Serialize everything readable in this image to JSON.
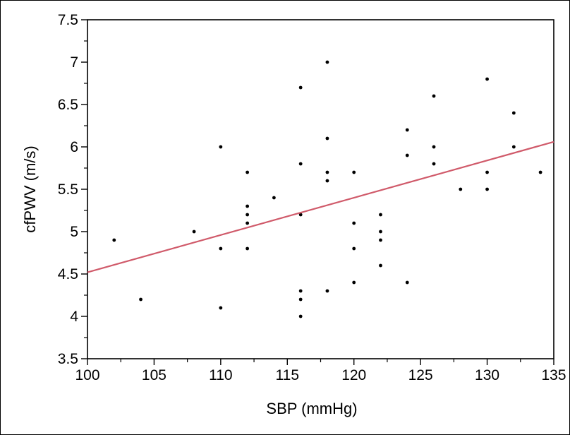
{
  "chart_data": {
    "type": "scatter",
    "xlabel": "SBP (mmHg)",
    "ylabel": "cfPWV (m/s)",
    "xlim": [
      100,
      135
    ],
    "ylim": [
      3.5,
      7.5
    ],
    "xticks": [
      100,
      105,
      110,
      115,
      120,
      125,
      130,
      135
    ],
    "yticks": [
      3.5,
      4,
      4.5,
      5,
      5.5,
      6,
      6.5,
      7,
      7.5
    ],
    "xtick_labels": [
      "100",
      "105",
      "110",
      "115",
      "120",
      "125",
      "130",
      "135"
    ],
    "ytick_labels": [
      "3.5",
      "4",
      "4.5",
      "5",
      "5.5",
      "6",
      "6.5",
      "7",
      "7.5"
    ],
    "grid": false,
    "points": [
      {
        "x": 102,
        "y": 4.9
      },
      {
        "x": 104,
        "y": 4.2
      },
      {
        "x": 108,
        "y": 5.0
      },
      {
        "x": 110,
        "y": 6.0
      },
      {
        "x": 110,
        "y": 4.8
      },
      {
        "x": 110,
        "y": 4.1
      },
      {
        "x": 112,
        "y": 5.7
      },
      {
        "x": 112,
        "y": 5.3
      },
      {
        "x": 112,
        "y": 5.2
      },
      {
        "x": 112,
        "y": 5.1
      },
      {
        "x": 112,
        "y": 4.8
      },
      {
        "x": 114,
        "y": 5.4
      },
      {
        "x": 116,
        "y": 6.7
      },
      {
        "x": 116,
        "y": 5.8
      },
      {
        "x": 116,
        "y": 5.2
      },
      {
        "x": 116,
        "y": 4.3
      },
      {
        "x": 116,
        "y": 4.2
      },
      {
        "x": 116,
        "y": 4.0
      },
      {
        "x": 118,
        "y": 7.0
      },
      {
        "x": 118,
        "y": 6.1
      },
      {
        "x": 118,
        "y": 5.7
      },
      {
        "x": 118,
        "y": 5.6
      },
      {
        "x": 118,
        "y": 4.3
      },
      {
        "x": 120,
        "y": 5.7
      },
      {
        "x": 120,
        "y": 5.1
      },
      {
        "x": 120,
        "y": 4.8
      },
      {
        "x": 120,
        "y": 4.4
      },
      {
        "x": 122,
        "y": 5.2
      },
      {
        "x": 122,
        "y": 5.0
      },
      {
        "x": 122,
        "y": 4.9
      },
      {
        "x": 122,
        "y": 4.6
      },
      {
        "x": 124,
        "y": 6.2
      },
      {
        "x": 124,
        "y": 5.9
      },
      {
        "x": 124,
        "y": 4.4
      },
      {
        "x": 126,
        "y": 6.6
      },
      {
        "x": 126,
        "y": 6.0
      },
      {
        "x": 126,
        "y": 5.8
      },
      {
        "x": 128,
        "y": 5.5
      },
      {
        "x": 130,
        "y": 6.8
      },
      {
        "x": 130,
        "y": 5.7
      },
      {
        "x": 130,
        "y": 5.5
      },
      {
        "x": 132,
        "y": 6.4
      },
      {
        "x": 132,
        "y": 6.0
      },
      {
        "x": 134,
        "y": 5.7
      }
    ],
    "trend_line": {
      "x": [
        100,
        135
      ],
      "y": [
        4.52,
        6.06
      ],
      "color": "#d05a6a"
    },
    "point_color": "#000000"
  }
}
